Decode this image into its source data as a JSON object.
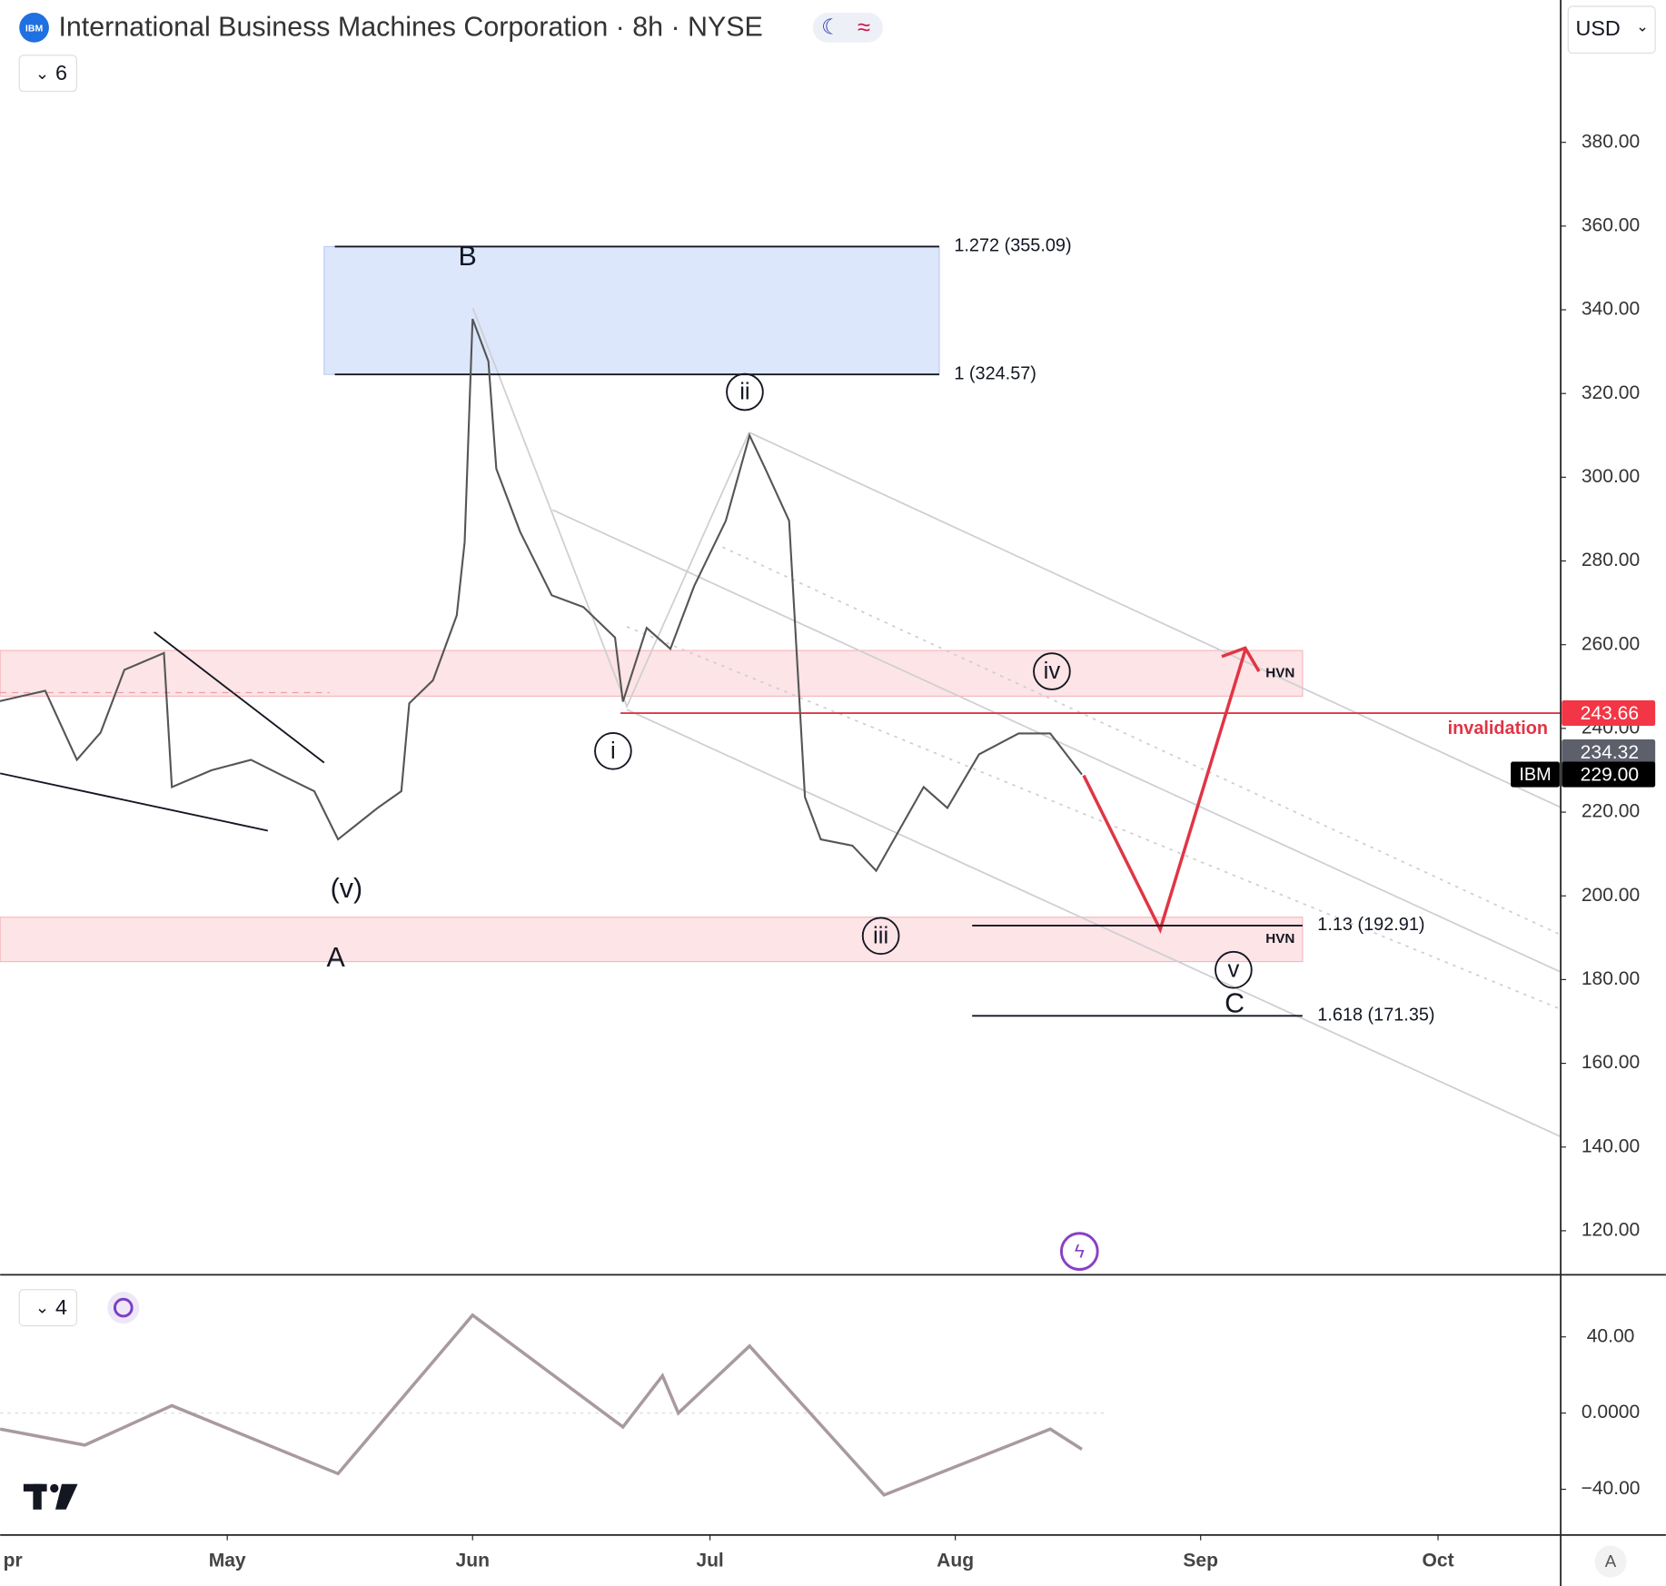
{
  "header": {
    "logo": "IBM",
    "title": "International Business Machines Corporation · 8h · NYSE",
    "currency": "USD",
    "indicators_main": "6",
    "indicators_sub": "4",
    "scale_mode": "A"
  },
  "chart_data": [
    {
      "type": "line",
      "color": "#555555",
      "x": [
        92,
        98,
        102,
        105,
        108,
        113,
        114,
        119,
        124,
        128,
        132,
        135,
        140,
        143,
        144,
        147,
        150,
        151,
        152,
        154,
        155,
        158,
        162,
        166,
        170,
        171,
        174,
        177,
        180,
        184,
        187,
        189,
        192,
        194,
        196,
        200,
        203,
        206,
        209,
        212,
        216,
        221,
        225,
        229
      ],
      "values": [
        246.4,
        249,
        232.5,
        239,
        254,
        258,
        226,
        230,
        232.5,
        228.7,
        225,
        213.5,
        221,
        225,
        246,
        251.5,
        267,
        284.5,
        337.8,
        327.7,
        302,
        287,
        271.8,
        269,
        261.7,
        246.4,
        264,
        259,
        274,
        289.6,
        310,
        302,
        289.6,
        223.6,
        213.5,
        212,
        206,
        216,
        226,
        221,
        233.8,
        238.8,
        238.8,
        229
      ],
      "xlim": [
        92.3,
        289.5
      ],
      "xticks": [
        {
          "value": 91,
          "label": "pr"
        },
        {
          "value": 121,
          "label": "May"
        },
        {
          "value": 152,
          "label": "Jun"
        },
        {
          "value": 182,
          "label": "Jul"
        },
        {
          "value": 213,
          "label": "Aug"
        },
        {
          "value": 244,
          "label": "Sep"
        },
        {
          "value": 274,
          "label": "Oct"
        }
      ],
      "ylim": [
        110,
        414
      ],
      "yticks": [
        {
          "value": 120,
          "label": "120.00"
        },
        {
          "value": 140,
          "label": "140.00"
        },
        {
          "value": 160,
          "label": "160.00"
        },
        {
          "value": 180,
          "label": "180.00"
        },
        {
          "value": 200,
          "label": "200.00"
        },
        {
          "value": 220,
          "label": "220.00"
        },
        {
          "value": 240,
          "label": "240.00"
        },
        {
          "value": 260,
          "label": "260.00"
        },
        {
          "value": 280,
          "label": "280.00"
        },
        {
          "value": 300,
          "label": "300.00"
        },
        {
          "value": 320,
          "label": "320.00"
        },
        {
          "value": 340,
          "label": "340.00"
        },
        {
          "value": 360,
          "label": "360.00"
        },
        {
          "value": 380,
          "label": "380.00"
        }
      ],
      "levels": [
        {
          "value": 355.09,
          "label": "1.272 (355.09)"
        },
        {
          "value": 324.57,
          "label": "1 (324.57)"
        },
        {
          "value": 192.91,
          "label": "1.13 (192.91)"
        },
        {
          "value": 171.35,
          "label": "1.618 (171.35)"
        }
      ],
      "zones": [
        {
          "from": 247.7,
          "to": 258.6,
          "label": "HVN"
        },
        {
          "from": 184.3,
          "to": 194.9,
          "label": "HVN"
        }
      ],
      "invalidation": {
        "value": 243.66,
        "label": "invalidation"
      },
      "price_tags": [
        {
          "value": 243.66,
          "label": "243.66",
          "color": "#f23645"
        },
        {
          "value": 234.32,
          "label": "234.32",
          "color": "#5d606b"
        },
        {
          "value": 229,
          "label": "229.00",
          "color": "#000000",
          "symbol": "IBM"
        }
      ],
      "annotations": [
        "B",
        "ii",
        "i",
        "iv",
        "iii",
        "v",
        "C",
        "(v)",
        "A"
      ]
    },
    {
      "type": "line",
      "color": "#a89a9e",
      "x": [
        92.3,
        103,
        114,
        135,
        152,
        171,
        176,
        178,
        187,
        204,
        225,
        229
      ],
      "values": [
        -8.4,
        -16.8,
        3.9,
        -31.8,
        51.4,
        -7.3,
        19.6,
        0,
        35.2,
        -43,
        -8.4,
        -19
      ],
      "xlim": [
        92.3,
        289.5
      ],
      "ylim": [
        -64,
        72.6
      ],
      "yticks": [
        {
          "value": 40,
          "label": "40.00"
        },
        {
          "value": 0,
          "label": "0.0000"
        },
        {
          "value": -40,
          "label": "−40.00"
        }
      ]
    }
  ]
}
